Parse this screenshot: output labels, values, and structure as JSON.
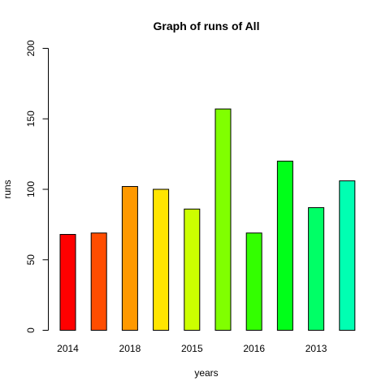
{
  "chart_data": {
    "type": "bar",
    "title": "Graph of runs of All",
    "xlabel": "years",
    "ylabel": "runs",
    "ylim": [
      0,
      200
    ],
    "yticks": [
      0,
      50,
      100,
      150,
      200
    ],
    "categories": [
      "2014",
      "",
      "2018",
      "",
      "2015",
      "",
      "2016",
      "",
      "2013",
      ""
    ],
    "values": [
      68,
      69,
      102,
      100,
      86,
      157,
      69,
      120,
      87,
      106
    ],
    "colors": [
      "#FF0000",
      "#FF4D00",
      "#FF9900",
      "#FFE500",
      "#CCFF00",
      "#80FF00",
      "#33FF00",
      "#00FF19",
      "#00FF66",
      "#00FFB2"
    ],
    "legend": "none",
    "grid": false
  }
}
